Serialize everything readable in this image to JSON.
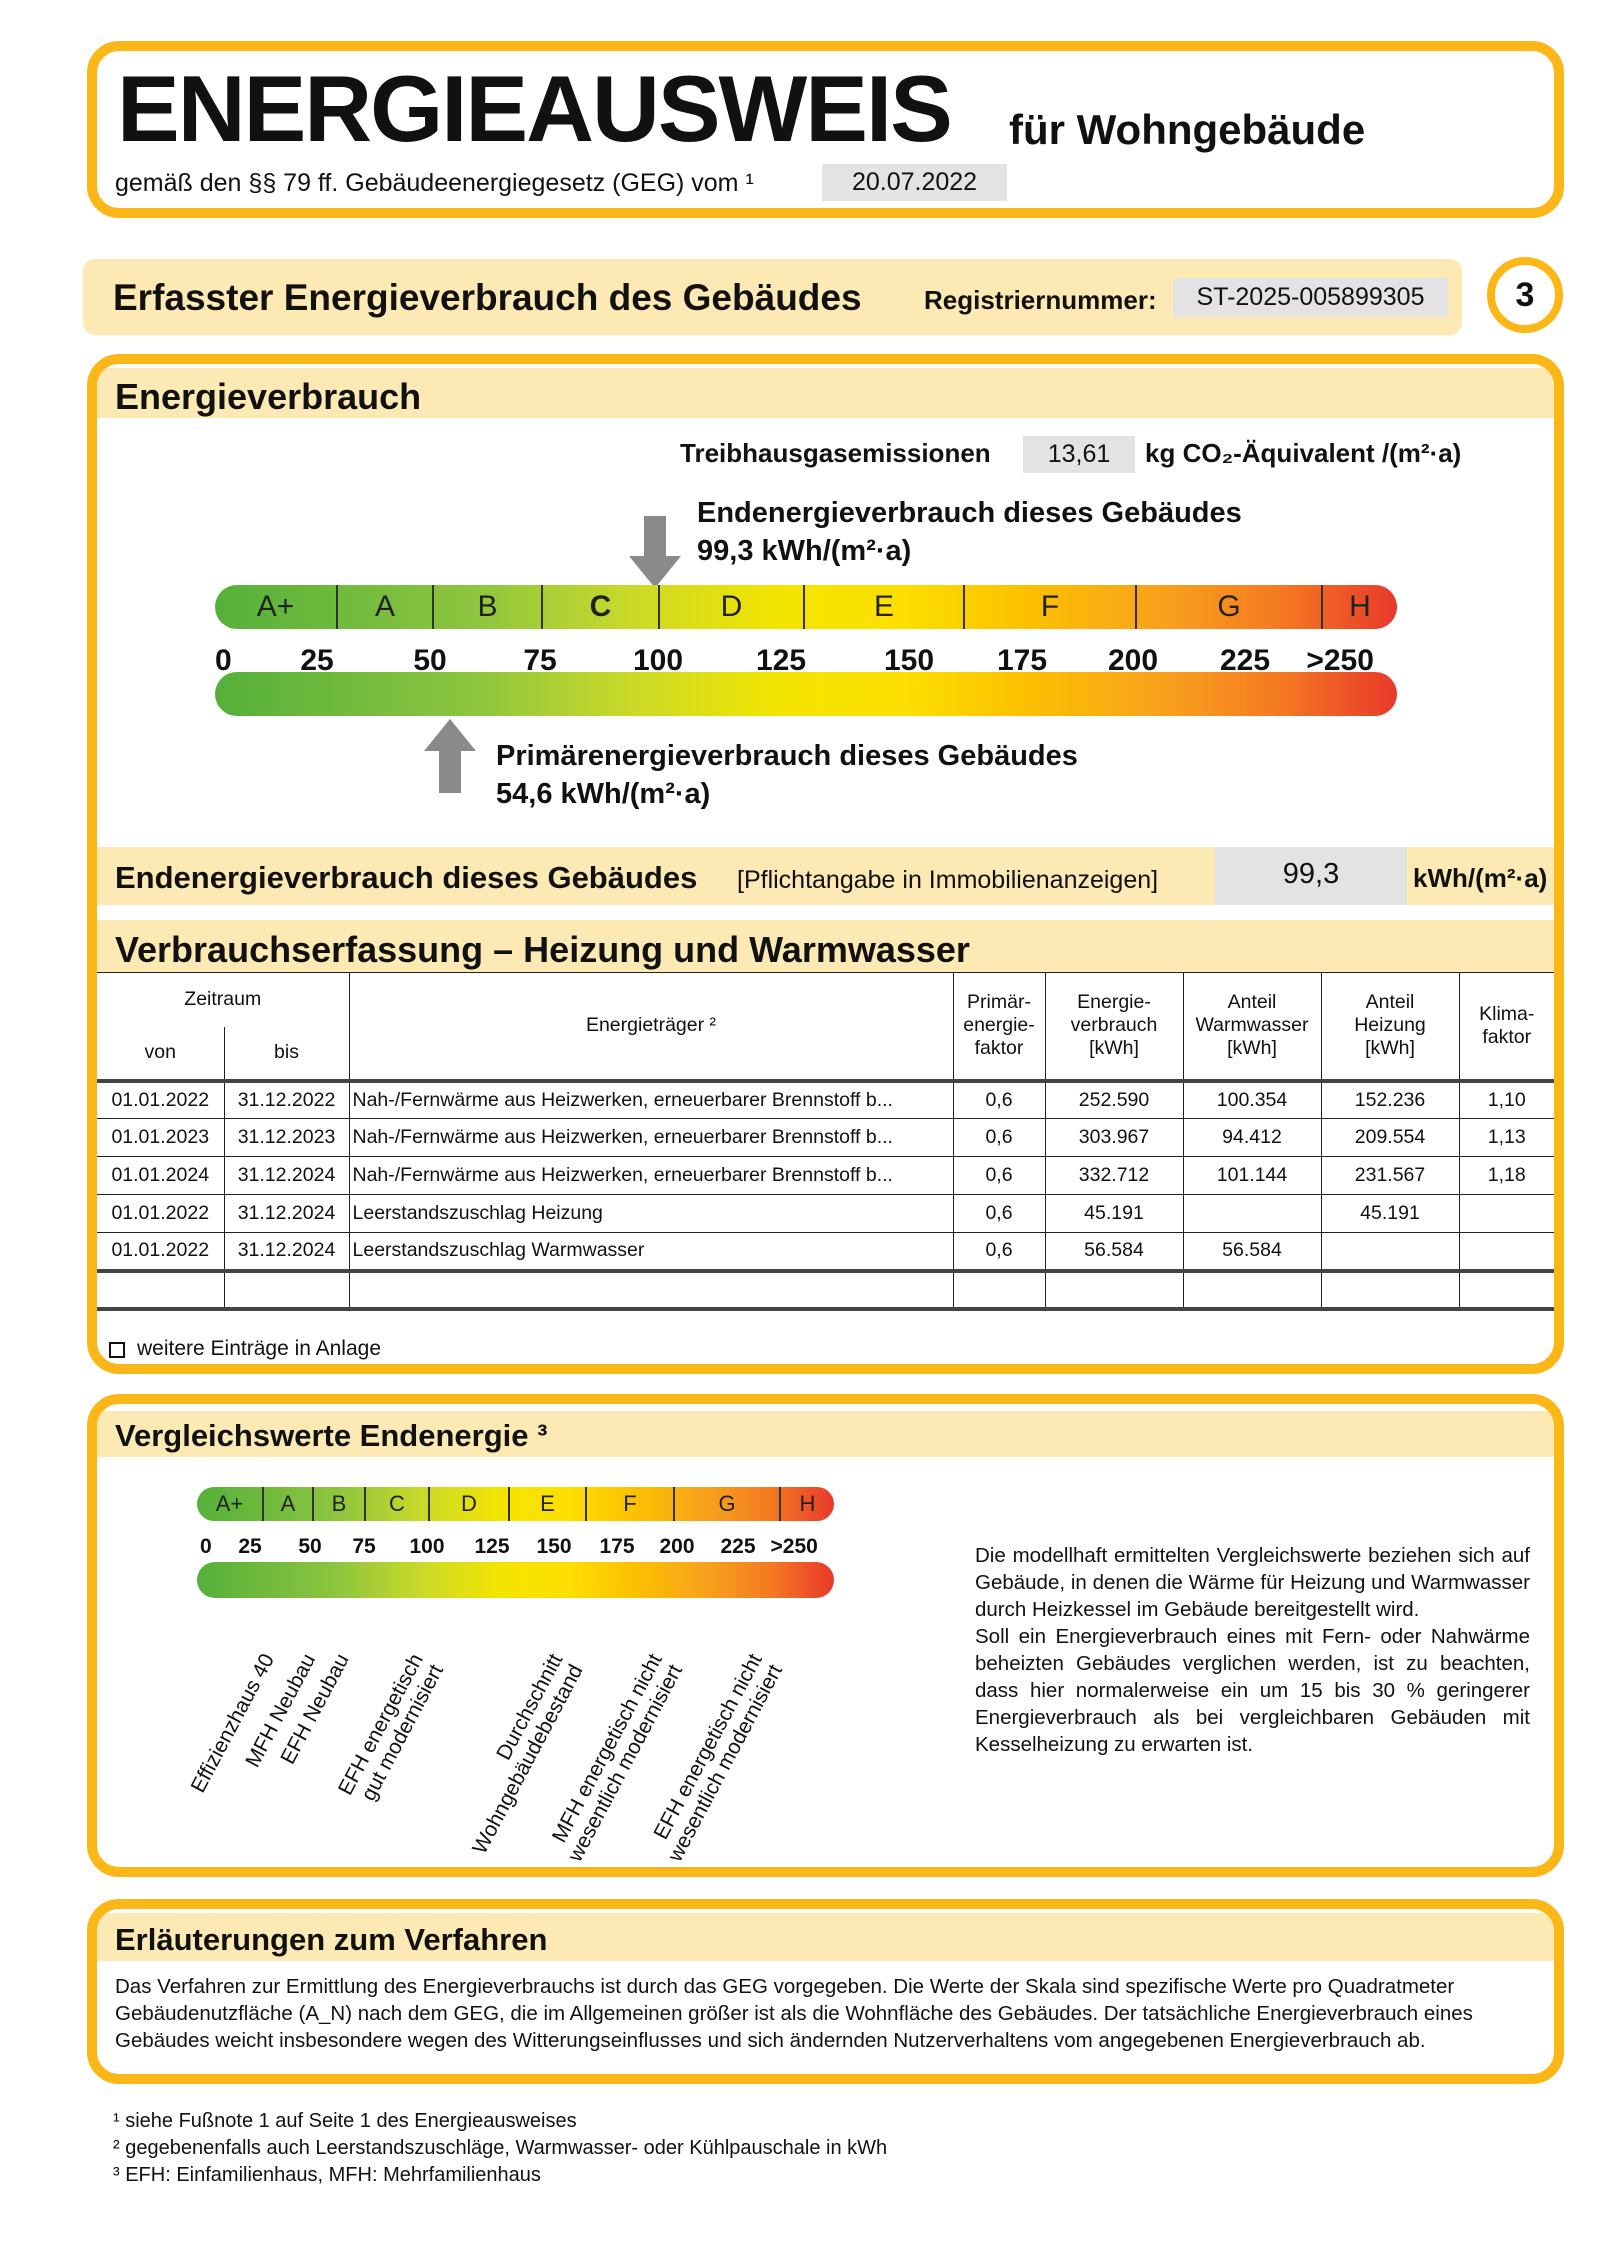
{
  "header": {
    "title": "ENERGIEAUSWEIS",
    "subtitle": "für Wohngebäude",
    "legal": "gemäß den §§ 79 ff. Gebäudeenergiegesetz (GEG) vom ¹",
    "date": "20.07.2022"
  },
  "section": {
    "title": "Erfasster Energieverbrauch des Gebäudes",
    "reg_label": "Registriernummer:",
    "reg_value": "ST-2025-005899305",
    "page_number": "3"
  },
  "energy": {
    "title": "Energieverbrauch",
    "ghg_label": "Treibhausgasemissionen",
    "ghg_value": "13,61",
    "ghg_unit": "kg CO₂-Äquivalent /(m²·a)",
    "end_label": "Endenergieverbrauch dieses Gebäudes",
    "end_value_text": "99,3 kWh/(m²·a)",
    "end_value": 99.3,
    "primary_label": "Primärenergieverbrauch dieses Gebäudes",
    "primary_value_text": "54,6 kWh/(m²·a)",
    "primary_value": 54.6,
    "classes": [
      "A+",
      "A",
      "B",
      "C",
      "D",
      "E",
      "F",
      "G",
      "H"
    ],
    "active_class": "C",
    "ticks": [
      "0",
      "25",
      "50",
      "75",
      "100",
      "125",
      "150",
      "175",
      "200",
      "225",
      ">250"
    ]
  },
  "end_row": {
    "label": "Endenergieverbrauch dieses Gebäudes",
    "note": "[Pflichtangabe in Immobilienanzeigen]",
    "value": "99,3",
    "unit": "kWh/(m²·a)"
  },
  "consumption": {
    "title": "Verbrauchserfassung – Heizung und Warmwasser",
    "headers": {
      "period": "Zeitraum",
      "from": "von",
      "to": "bis",
      "carrier": "Energieträger ²",
      "pef": "Primär-\nenergie-\nfaktor",
      "cons": "Energie-\nverbrauch\n[kWh]",
      "ww": "Anteil\nWarmwasser\n[kWh]",
      "heat": "Anteil\nHeizung\n[kWh]",
      "klima": "Klima-\nfaktor"
    },
    "rows": [
      [
        "01.01.2022",
        "31.12.2022",
        "Nah-/Fernwärme aus Heizwerken, erneuerbarer Brennstoff b...",
        "0,6",
        "252.590",
        "100.354",
        "152.236",
        "1,10"
      ],
      [
        "01.01.2023",
        "31.12.2023",
        "Nah-/Fernwärme aus Heizwerken, erneuerbarer Brennstoff b...",
        "0,6",
        "303.967",
        "94.412",
        "209.554",
        "1,13"
      ],
      [
        "01.01.2024",
        "31.12.2024",
        "Nah-/Fernwärme aus Heizwerken, erneuerbarer Brennstoff b...",
        "0,6",
        "332.712",
        "101.144",
        "231.567",
        "1,18"
      ],
      [
        "01.01.2022",
        "31.12.2024",
        "Leerstandszuschlag Heizung",
        "0,6",
        "45.191",
        "",
        "45.191",
        ""
      ],
      [
        "01.01.2022",
        "31.12.2024",
        "Leerstandszuschlag Warmwasser",
        "0,6",
        "56.584",
        "56.584",
        "",
        ""
      ],
      [
        "",
        "",
        "",
        "",
        "",
        "",
        "",
        ""
      ]
    ],
    "more_entries": "weitere Einträge in Anlage",
    "more_entries_checked": false
  },
  "compare": {
    "title": "Vergleichswerte Endenergie ³",
    "labels": [
      "Effizienzhaus 40",
      "MFH Neubau",
      "EFH Neubau",
      "EFH energetisch\ngut modernisiert",
      "Durchschnitt\nWohngebäudebestand",
      "MFH energetisch nicht\nwesentlich modernisiert",
      "EFH energetisch nicht\nwesentlich modernisiert"
    ],
    "text": "Die modellhaft ermittelten Vergleichswerte beziehen sich auf Gebäude, in denen die Wärme für Heizung und Warmwasser durch Heizkessel im Gebäude bereitgestellt wird.\nSoll ein Energieverbrauch eines mit Fern- oder Nahwärme beheizten Gebäudes verglichen werden, ist zu beachten, dass hier normalerweise ein um 15 bis 30 % geringerer Energieverbrauch als bei vergleichbaren Gebäuden mit Kesselheizung zu erwarten ist."
  },
  "explain": {
    "title": "Erläuterungen zum Verfahren",
    "text": "Das Verfahren zur Ermittlung des Energieverbrauchs ist durch das GEG vorgegeben. Die Werte der Skala sind spezifische Werte pro Quadratmeter Gebäudenutzfläche (A_N) nach dem GEG, die im Allgemeinen größer ist als die Wohnfläche des Gebäudes. Der tatsächliche Energieverbrauch eines Gebäudes weicht insbesondere wegen des Witterungseinflusses und sich ändernden Nutzerverhaltens vom angegebenen Energieverbrauch ab."
  },
  "footnotes": [
    "¹ siehe Fußnote 1 auf Seite 1 des Energieausweises",
    "² gegebenenfalls auch Leerstandszuschläge, Warmwasser- oder Kühlpauschale in kWh",
    "³ EFH: Einfamilienhaus, MFH: Mehrfamilienhaus"
  ],
  "colors": {
    "frame": "#fbb617",
    "stripe": "#fde9b3",
    "value_box": "#e3e3e3"
  }
}
